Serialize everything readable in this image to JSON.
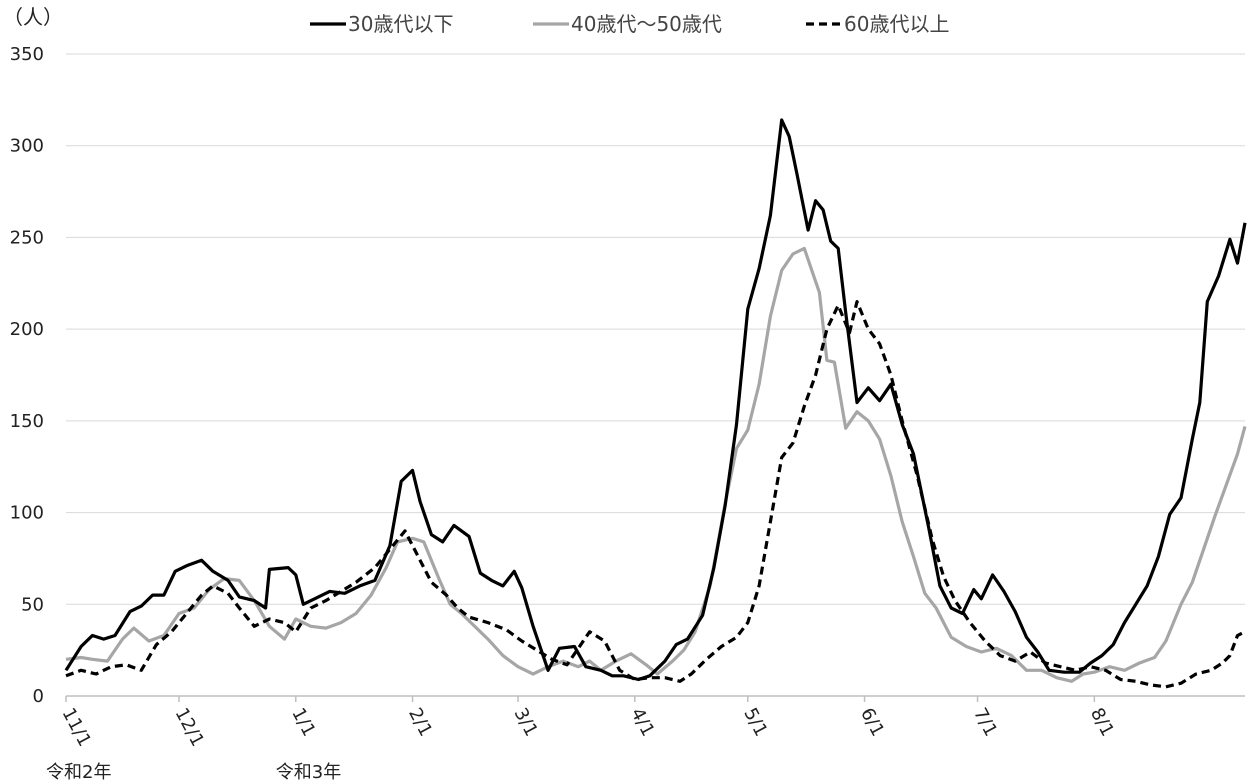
{
  "chart_data": {
    "type": "line",
    "ylabel": "（人）",
    "ylim": [
      0,
      350
    ],
    "yticks": [
      0,
      50,
      100,
      150,
      200,
      250,
      300,
      350
    ],
    "grid": true,
    "legend_position": "top-center",
    "x_start": "2020-11-01",
    "x_end": "2021-08-09",
    "x_ticks": [
      "11/1",
      "12/1",
      "1/1",
      "2/1",
      "3/1",
      "4/1",
      "5/1",
      "6/1",
      "7/1",
      "8/1"
    ],
    "x_tick_dates": [
      "2020-11-01",
      "2020-12-01",
      "2021-01-01",
      "2021-02-01",
      "2021-03-01",
      "2021-04-01",
      "2021-05-01",
      "2021-06-01",
      "2021-07-01",
      "2021-08-01"
    ],
    "year_labels": [
      {
        "text": "令和2年",
        "date": "2020-11-01"
      },
      {
        "text": "令和3年",
        "date": "2021-01-01"
      }
    ],
    "series": [
      {
        "name": "30歳代以下",
        "color": "#000000",
        "style": "solid",
        "points": [
          [
            "2020-11-01",
            14
          ],
          [
            "2020-11-05",
            27
          ],
          [
            "2020-11-08",
            33
          ],
          [
            "2020-11-11",
            31
          ],
          [
            "2020-11-14",
            33
          ],
          [
            "2020-11-18",
            46
          ],
          [
            "2020-11-21",
            49
          ],
          [
            "2020-11-24",
            55
          ],
          [
            "2020-11-27",
            55
          ],
          [
            "2020-11-30",
            68
          ],
          [
            "2020-12-03",
            71
          ],
          [
            "2020-12-07",
            74
          ],
          [
            "2020-12-10",
            68
          ],
          [
            "2020-12-14",
            63
          ],
          [
            "2020-12-17",
            54
          ],
          [
            "2020-12-21",
            52
          ],
          [
            "2020-12-24",
            48
          ],
          [
            "2020-12-25",
            69
          ],
          [
            "2020-12-30",
            70
          ],
          [
            "2021-01-01",
            66
          ],
          [
            "2021-01-03",
            50
          ],
          [
            "2021-01-06",
            53
          ],
          [
            "2021-01-10",
            57
          ],
          [
            "2021-01-14",
            56
          ],
          [
            "2021-01-18",
            60
          ],
          [
            "2021-01-22",
            63
          ],
          [
            "2021-01-26",
            82
          ],
          [
            "2021-01-29",
            117
          ],
          [
            "2021-02-01",
            123
          ],
          [
            "2021-02-03",
            106
          ],
          [
            "2021-02-06",
            88
          ],
          [
            "2021-02-09",
            84
          ],
          [
            "2021-02-12",
            93
          ],
          [
            "2021-02-16",
            87
          ],
          [
            "2021-02-19",
            67
          ],
          [
            "2021-02-22",
            63
          ],
          [
            "2021-02-25",
            60
          ],
          [
            "2021-02-28",
            68
          ],
          [
            "2021-03-02",
            59
          ],
          [
            "2021-03-05",
            38
          ],
          [
            "2021-03-09",
            14
          ],
          [
            "2021-03-12",
            26
          ],
          [
            "2021-03-16",
            27
          ],
          [
            "2021-03-19",
            16
          ],
          [
            "2021-03-23",
            14
          ],
          [
            "2021-03-26",
            11
          ],
          [
            "2021-03-29",
            11
          ],
          [
            "2021-04-02",
            9
          ],
          [
            "2021-04-05",
            11
          ],
          [
            "2021-04-09",
            19
          ],
          [
            "2021-04-12",
            28
          ],
          [
            "2021-04-15",
            31
          ],
          [
            "2021-04-19",
            44
          ],
          [
            "2021-04-22",
            70
          ],
          [
            "2021-04-25",
            104
          ],
          [
            "2021-04-28",
            148
          ],
          [
            "2021-05-01",
            211
          ],
          [
            "2021-05-04",
            233
          ],
          [
            "2021-05-07",
            262
          ],
          [
            "2021-05-10",
            314
          ],
          [
            "2021-05-12",
            305
          ],
          [
            "2021-05-14",
            285
          ],
          [
            "2021-05-17",
            254
          ],
          [
            "2021-05-19",
            270
          ],
          [
            "2021-05-21",
            265
          ],
          [
            "2021-05-23",
            248
          ],
          [
            "2021-05-25",
            244
          ],
          [
            "2021-05-27",
            209
          ],
          [
            "2021-05-30",
            160
          ],
          [
            "2021-06-02",
            168
          ],
          [
            "2021-06-05",
            161
          ],
          [
            "2021-06-08",
            170
          ],
          [
            "2021-06-11",
            148
          ],
          [
            "2021-06-14",
            132
          ],
          [
            "2021-06-18",
            92
          ],
          [
            "2021-06-21",
            60
          ],
          [
            "2021-06-24",
            48
          ],
          [
            "2021-06-27",
            45
          ],
          [
            "2021-06-30",
            58
          ],
          [
            "2021-07-02",
            53
          ],
          [
            "2021-07-05",
            66
          ],
          [
            "2021-07-08",
            57
          ],
          [
            "2021-07-11",
            46
          ],
          [
            "2021-07-14",
            32
          ],
          [
            "2021-07-17",
            24
          ],
          [
            "2021-07-20",
            14
          ],
          [
            "2021-07-24",
            13
          ],
          [
            "2021-07-28",
            13
          ],
          [
            "2021-07-31",
            18
          ],
          [
            "2021-08-03",
            22
          ],
          [
            "2021-08-06",
            28
          ],
          [
            "2021-08-09",
            40
          ],
          [
            "2021-08-12",
            50
          ],
          [
            "2021-08-15",
            60
          ],
          [
            "2021-08-18",
            76
          ],
          [
            "2021-08-21",
            99
          ],
          [
            "2021-08-24",
            108
          ],
          [
            "2021-08-27",
            140
          ],
          [
            "2021-08-29",
            160
          ],
          [
            "2021-08-31",
            215
          ],
          [
            "2021-09-03",
            229
          ],
          [
            "2021-09-06",
            249
          ],
          [
            "2021-09-08",
            236
          ],
          [
            "2021-09-10",
            258
          ]
        ]
      },
      {
        "name": "40歳代～50歳代",
        "color": "#a6a6a6",
        "style": "solid",
        "points": [
          [
            "2020-11-01",
            20
          ],
          [
            "2020-11-05",
            21
          ],
          [
            "2020-11-08",
            20
          ],
          [
            "2020-11-12",
            19
          ],
          [
            "2020-11-16",
            31
          ],
          [
            "2020-11-19",
            37
          ],
          [
            "2020-11-23",
            30
          ],
          [
            "2020-11-27",
            33
          ],
          [
            "2020-12-01",
            45
          ],
          [
            "2020-12-05",
            48
          ],
          [
            "2020-12-09",
            58
          ],
          [
            "2020-12-13",
            64
          ],
          [
            "2020-12-17",
            63
          ],
          [
            "2020-12-21",
            52
          ],
          [
            "2020-12-25",
            38
          ],
          [
            "2020-12-29",
            31
          ],
          [
            "2021-01-01",
            42
          ],
          [
            "2021-01-05",
            38
          ],
          [
            "2021-01-09",
            37
          ],
          [
            "2021-01-13",
            40
          ],
          [
            "2021-01-17",
            45
          ],
          [
            "2021-01-21",
            55
          ],
          [
            "2021-01-25",
            70
          ],
          [
            "2021-01-28",
            84
          ],
          [
            "2021-02-01",
            86
          ],
          [
            "2021-02-04",
            84
          ],
          [
            "2021-02-08",
            64
          ],
          [
            "2021-02-11",
            50
          ],
          [
            "2021-02-14",
            45
          ],
          [
            "2021-02-17",
            39
          ],
          [
            "2021-02-21",
            31
          ],
          [
            "2021-02-25",
            22
          ],
          [
            "2021-03-01",
            16
          ],
          [
            "2021-03-05",
            12
          ],
          [
            "2021-03-09",
            16
          ],
          [
            "2021-03-13",
            19
          ],
          [
            "2021-03-17",
            16
          ],
          [
            "2021-03-20",
            19
          ],
          [
            "2021-03-23",
            14
          ],
          [
            "2021-03-27",
            19
          ],
          [
            "2021-03-31",
            23
          ],
          [
            "2021-04-04",
            17
          ],
          [
            "2021-04-07",
            12
          ],
          [
            "2021-04-11",
            19
          ],
          [
            "2021-04-14",
            25
          ],
          [
            "2021-04-17",
            35
          ],
          [
            "2021-04-21",
            60
          ],
          [
            "2021-04-25",
            105
          ],
          [
            "2021-04-28",
            135
          ],
          [
            "2021-05-01",
            145
          ],
          [
            "2021-05-04",
            170
          ],
          [
            "2021-05-07",
            207
          ],
          [
            "2021-05-10",
            232
          ],
          [
            "2021-05-13",
            241
          ],
          [
            "2021-05-16",
            244
          ],
          [
            "2021-05-18",
            232
          ],
          [
            "2021-05-20",
            220
          ],
          [
            "2021-05-22",
            183
          ],
          [
            "2021-05-24",
            182
          ],
          [
            "2021-05-27",
            146
          ],
          [
            "2021-05-30",
            155
          ],
          [
            "2021-06-02",
            150
          ],
          [
            "2021-06-05",
            140
          ],
          [
            "2021-06-08",
            120
          ],
          [
            "2021-06-11",
            95
          ],
          [
            "2021-06-14",
            76
          ],
          [
            "2021-06-17",
            56
          ],
          [
            "2021-06-20",
            48
          ],
          [
            "2021-06-24",
            32
          ],
          [
            "2021-06-28",
            27
          ],
          [
            "2021-07-02",
            24
          ],
          [
            "2021-07-06",
            26
          ],
          [
            "2021-07-10",
            22
          ],
          [
            "2021-07-14",
            14
          ],
          [
            "2021-07-18",
            14
          ],
          [
            "2021-07-22",
            10
          ],
          [
            "2021-07-26",
            8
          ],
          [
            "2021-07-29",
            12
          ],
          [
            "2021-08-01",
            13
          ],
          [
            "2021-08-05",
            16
          ],
          [
            "2021-08-09",
            14
          ],
          [
            "2021-08-13",
            18
          ],
          [
            "2021-08-17",
            21
          ],
          [
            "2021-08-20",
            30
          ],
          [
            "2021-08-24",
            50
          ],
          [
            "2021-08-27",
            62
          ],
          [
            "2021-08-30",
            80
          ],
          [
            "2021-09-02",
            98
          ],
          [
            "2021-09-05",
            115
          ],
          [
            "2021-09-08",
            132
          ],
          [
            "2021-09-10",
            147
          ]
        ]
      },
      {
        "name": "60歳代以上",
        "color": "#000000",
        "style": "dashed",
        "points": [
          [
            "2020-11-01",
            11
          ],
          [
            "2020-11-05",
            14
          ],
          [
            "2020-11-09",
            12
          ],
          [
            "2020-11-13",
            16
          ],
          [
            "2020-11-17",
            17
          ],
          [
            "2020-11-21",
            14
          ],
          [
            "2020-11-25",
            28
          ],
          [
            "2020-11-29",
            35
          ],
          [
            "2020-12-03",
            45
          ],
          [
            "2020-12-07",
            55
          ],
          [
            "2020-12-10",
            60
          ],
          [
            "2020-12-14",
            56
          ],
          [
            "2020-12-17",
            48
          ],
          [
            "2020-12-21",
            38
          ],
          [
            "2020-12-25",
            42
          ],
          [
            "2020-12-29",
            40
          ],
          [
            "2021-01-01",
            35
          ],
          [
            "2021-01-05",
            48
          ],
          [
            "2021-01-09",
            52
          ],
          [
            "2021-01-13",
            57
          ],
          [
            "2021-01-17",
            62
          ],
          [
            "2021-01-22",
            70
          ],
          [
            "2021-01-26",
            80
          ],
          [
            "2021-01-30",
            90
          ],
          [
            "2021-02-03",
            74
          ],
          [
            "2021-02-06",
            62
          ],
          [
            "2021-02-10",
            55
          ],
          [
            "2021-02-13",
            48
          ],
          [
            "2021-02-16",
            43
          ],
          [
            "2021-02-21",
            40
          ],
          [
            "2021-02-26",
            36
          ],
          [
            "2021-03-02",
            30
          ],
          [
            "2021-03-06",
            25
          ],
          [
            "2021-03-10",
            20
          ],
          [
            "2021-03-14",
            17
          ],
          [
            "2021-03-17",
            26
          ],
          [
            "2021-03-20",
            35
          ],
          [
            "2021-03-24",
            30
          ],
          [
            "2021-03-28",
            14
          ],
          [
            "2021-04-01",
            9
          ],
          [
            "2021-04-05",
            10
          ],
          [
            "2021-04-09",
            10
          ],
          [
            "2021-04-13",
            8
          ],
          [
            "2021-04-16",
            12
          ],
          [
            "2021-04-20",
            20
          ],
          [
            "2021-04-24",
            27
          ],
          [
            "2021-04-28",
            32
          ],
          [
            "2021-05-01",
            40
          ],
          [
            "2021-05-04",
            60
          ],
          [
            "2021-05-07",
            95
          ],
          [
            "2021-05-10",
            130
          ],
          [
            "2021-05-13",
            138
          ],
          [
            "2021-05-16",
            158
          ],
          [
            "2021-05-19",
            175
          ],
          [
            "2021-05-22",
            200
          ],
          [
            "2021-05-25",
            213
          ],
          [
            "2021-05-28",
            198
          ],
          [
            "2021-05-30",
            215
          ],
          [
            "2021-06-02",
            200
          ],
          [
            "2021-06-05",
            192
          ],
          [
            "2021-06-08",
            175
          ],
          [
            "2021-06-11",
            150
          ],
          [
            "2021-06-15",
            120
          ],
          [
            "2021-06-19",
            85
          ],
          [
            "2021-06-22",
            65
          ],
          [
            "2021-06-25",
            52
          ],
          [
            "2021-06-29",
            40
          ],
          [
            "2021-07-03",
            30
          ],
          [
            "2021-07-07",
            22
          ],
          [
            "2021-07-11",
            19
          ],
          [
            "2021-07-15",
            24
          ],
          [
            "2021-07-19",
            18
          ],
          [
            "2021-07-23",
            16
          ],
          [
            "2021-07-27",
            14
          ],
          [
            "2021-07-31",
            16
          ],
          [
            "2021-08-04",
            14
          ],
          [
            "2021-08-08",
            9
          ],
          [
            "2021-08-12",
            8
          ],
          [
            "2021-08-16",
            6
          ],
          [
            "2021-08-20",
            5
          ],
          [
            "2021-08-24",
            7
          ],
          [
            "2021-08-28",
            12
          ],
          [
            "2021-09-01",
            14
          ],
          [
            "2021-09-04",
            18
          ],
          [
            "2021-09-06",
            22
          ],
          [
            "2021-09-08",
            33
          ],
          [
            "2021-09-10",
            35
          ]
        ]
      }
    ]
  }
}
